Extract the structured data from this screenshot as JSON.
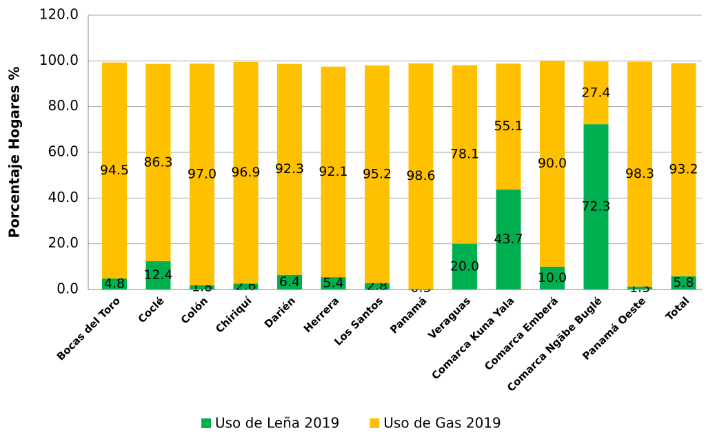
{
  "chart_data": {
    "type": "stacked_bar",
    "y_label": "Porcentaje Hogares %",
    "categories": [
      "Bocas del Toro",
      "Coclé",
      "Colón",
      "Chiriquí",
      "Darién",
      "Herrera",
      "Los Santos",
      "Panamá",
      "Veraguas",
      "Comarca Kuna Yala",
      "Comarca Emberá",
      "Comarca Ngäbe Buglé",
      "Panamá Oeste",
      "Total"
    ],
    "series": [
      {
        "name": "Uso de Leña 2019",
        "color": "#00b050",
        "values": [
          4.8,
          12.4,
          1.8,
          2.6,
          6.4,
          5.4,
          2.8,
          0.3,
          20.0,
          43.7,
          10.0,
          72.3,
          1.3,
          5.8
        ],
        "value_labels": [
          "4.8",
          "12.4",
          "1.8",
          "2.6",
          "6.4",
          "5.4",
          "2.8",
          "0.3",
          "20.0",
          "43.7",
          "10.0",
          "72.3",
          "1.3",
          "5.8"
        ]
      },
      {
        "name": "Uso de Gas 2019",
        "color": "#ffc000",
        "values": [
          94.5,
          86.3,
          97.0,
          96.9,
          92.3,
          92.1,
          95.2,
          98.6,
          78.1,
          55.1,
          90.0,
          27.4,
          98.3,
          93.2
        ],
        "value_labels": [
          "94.5",
          "86.3",
          "97.0",
          "96.9",
          "92.3",
          "92.1",
          "95.2",
          "98.6",
          "78.1",
          "55.1",
          "90.0",
          "27.4",
          "98.3",
          "93.2"
        ]
      }
    ],
    "ylim": [
      0,
      120
    ],
    "yticks": [
      {
        "value": 0,
        "label": "0.0"
      },
      {
        "value": 20,
        "label": "20.0"
      },
      {
        "value": 40,
        "label": "40.0"
      },
      {
        "value": 60,
        "label": "60.0"
      },
      {
        "value": 80,
        "label": "80.0"
      },
      {
        "value": 100,
        "label": "100.0"
      },
      {
        "value": 120,
        "label": "120.0"
      }
    ],
    "grid": true,
    "legend": "bottom"
  }
}
